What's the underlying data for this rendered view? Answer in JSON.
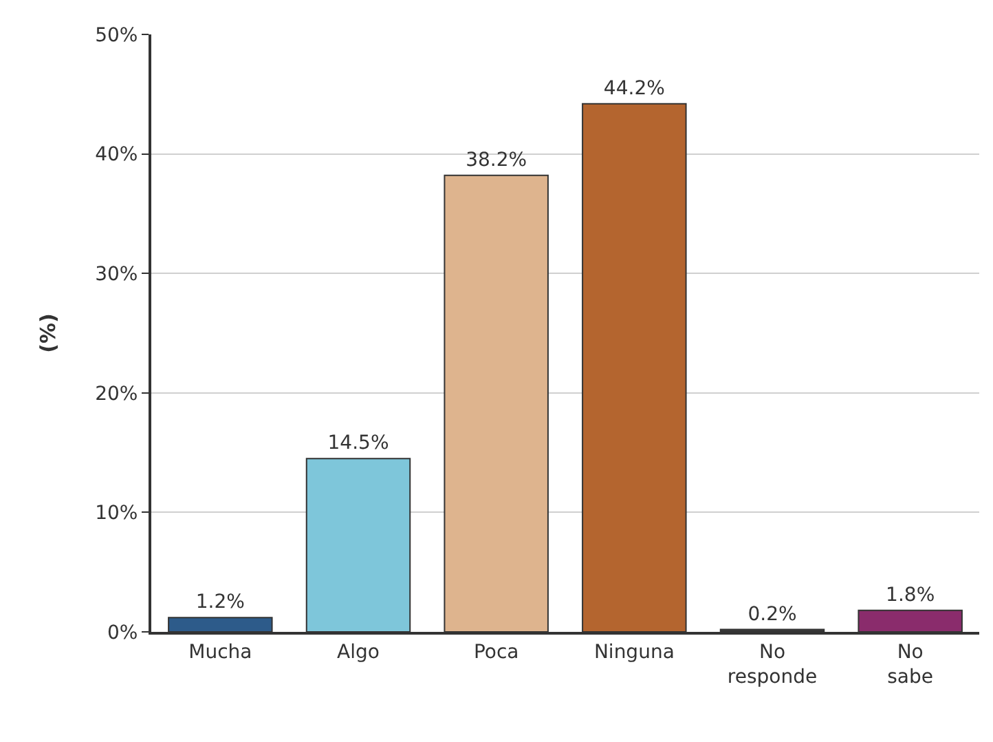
{
  "chart_data": {
    "type": "bar",
    "ylabel": "(%)",
    "categories": [
      "Mucha",
      "Algo",
      "Poca",
      "Ninguna",
      "No responde",
      "No sabe"
    ],
    "values": [
      1.2,
      14.5,
      38.2,
      44.2,
      0.2,
      1.8
    ],
    "colors": [
      "#2d5b8a",
      "#7ec6da",
      "#deb48e",
      "#b4652f",
      "#3a3a3a",
      "#8a2c6c"
    ],
    "value_labels": [
      "1.2%",
      "14.5%",
      "38.2%",
      "44.2%",
      "0.2%",
      "1.8%"
    ],
    "ylim": [
      0,
      50
    ],
    "yticks": [
      {
        "value": 0,
        "label": "0%"
      },
      {
        "value": 10,
        "label": "10%"
      },
      {
        "value": 20,
        "label": "20%"
      },
      {
        "value": 30,
        "label": "30%"
      },
      {
        "value": 40,
        "label": "40%"
      },
      {
        "value": 50,
        "label": "50%"
      }
    ],
    "grid": "y"
  }
}
